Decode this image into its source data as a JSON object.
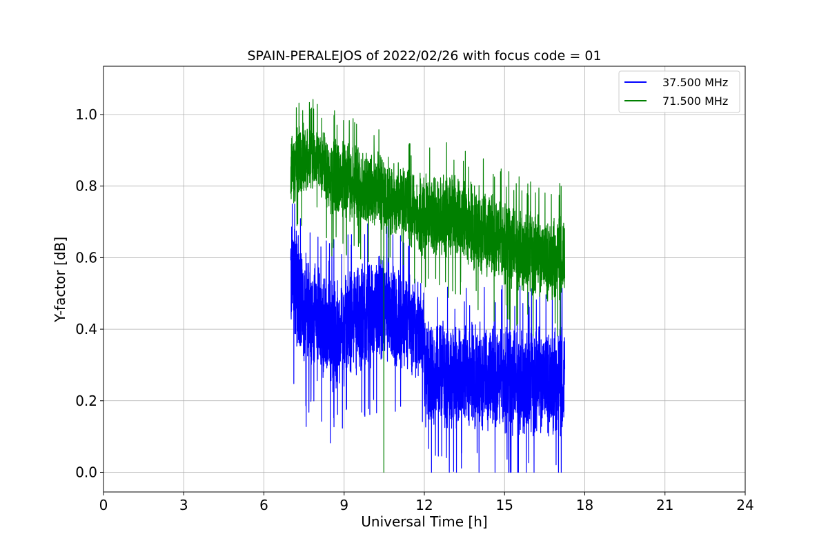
{
  "chart_data": {
    "type": "line",
    "title": "SPAIN-PERALEJOS of 2022/02/26 with focus code = 01",
    "xlabel": "Universal Time [h]",
    "ylabel": "Y-factor [dB]",
    "xlim": [
      0,
      24
    ],
    "ylim": [
      -0.055,
      1.135
    ],
    "xticks": [
      0,
      3,
      6,
      9,
      12,
      15,
      18,
      21,
      24
    ],
    "yticks": [
      0.0,
      0.2,
      0.4,
      0.6,
      0.8,
      1.0
    ],
    "ytick_labels": [
      "0.0",
      "0.2",
      "0.4",
      "0.6",
      "0.8",
      "1.0"
    ],
    "grid": true,
    "legend_position": "top-right",
    "time_range_h": [
      7.0,
      17.25
    ],
    "series": [
      {
        "name": "37.500 MHz",
        "color": "#0000ff",
        "x": [
          7.0,
          7.5,
          8.0,
          8.5,
          9.0,
          9.5,
          10.0,
          10.5,
          11.0,
          11.5,
          11.95,
          12.05,
          12.5,
          13.0,
          13.5,
          14.0,
          14.5,
          15.0,
          15.5,
          16.0,
          16.5,
          17.0,
          17.25
        ],
        "values": [
          0.55,
          0.45,
          0.42,
          0.38,
          0.4,
          0.42,
          0.44,
          0.45,
          0.43,
          0.42,
          0.4,
          0.28,
          0.28,
          0.26,
          0.27,
          0.27,
          0.26,
          0.26,
          0.25,
          0.25,
          0.26,
          0.26,
          0.25
        ],
        "band": [
          0.2,
          0.18,
          0.17,
          0.17,
          0.17,
          0.17,
          0.17,
          0.17,
          0.16,
          0.15,
          0.15,
          0.16,
          0.16,
          0.16,
          0.16,
          0.16,
          0.16,
          0.17,
          0.17,
          0.17,
          0.17,
          0.17,
          0.17
        ],
        "min_value": 0.0,
        "max_value": 0.75
      },
      {
        "name": "71.500 MHz",
        "color": "#008000",
        "x": [
          7.0,
          7.5,
          8.0,
          8.5,
          9.0,
          9.5,
          10.0,
          10.5,
          11.0,
          11.5,
          12.0,
          12.5,
          13.0,
          13.5,
          14.0,
          14.5,
          15.0,
          15.5,
          16.0,
          16.5,
          17.0,
          17.25
        ],
        "values": [
          0.84,
          0.88,
          0.88,
          0.82,
          0.82,
          0.8,
          0.79,
          0.77,
          0.76,
          0.74,
          0.72,
          0.71,
          0.72,
          0.7,
          0.68,
          0.66,
          0.64,
          0.62,
          0.61,
          0.6,
          0.6,
          0.6
        ],
        "band": [
          0.12,
          0.11,
          0.1,
          0.12,
          0.12,
          0.12,
          0.12,
          0.12,
          0.12,
          0.12,
          0.13,
          0.13,
          0.13,
          0.13,
          0.13,
          0.13,
          0.13,
          0.13,
          0.13,
          0.13,
          0.13,
          0.13
        ],
        "min_value": 0.0,
        "max_value": 1.08
      }
    ]
  }
}
